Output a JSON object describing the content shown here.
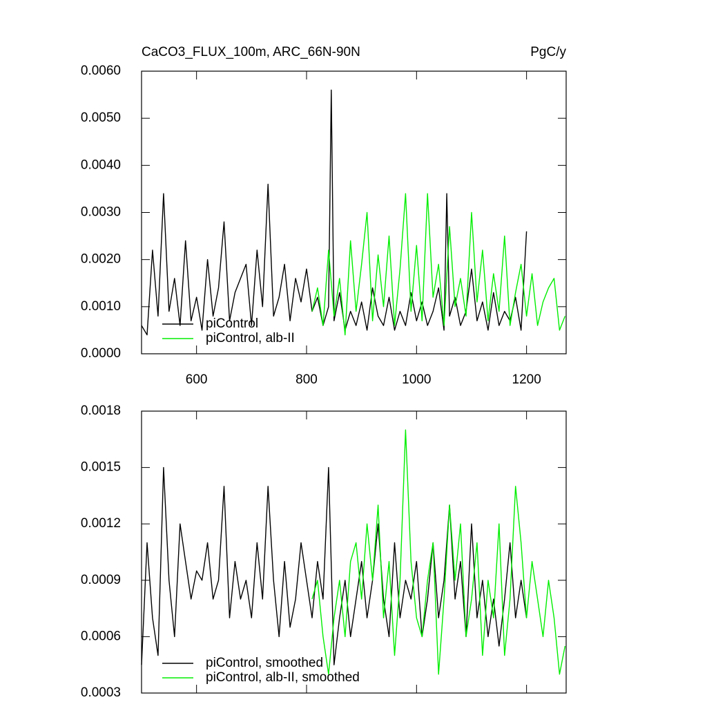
{
  "chart_data": [
    {
      "type": "line",
      "title": "CaCO3_FLUX_100m, ARC_66N-90N",
      "unit_label": "PgC/y",
      "xlim": [
        500,
        1272
      ],
      "xticks": [
        600,
        800,
        1000,
        1200
      ],
      "ylim": [
        0,
        0.006
      ],
      "yticks": [
        {
          "value": 0,
          "label": "0.0000"
        },
        {
          "value": 0.001,
          "label": "0.0010"
        },
        {
          "value": 0.002,
          "label": "0.0020"
        },
        {
          "value": 0.003,
          "label": "0.0030"
        },
        {
          "value": 0.004,
          "label": "0.0040"
        },
        {
          "value": 0.005,
          "label": "0.0050"
        },
        {
          "value": 0.006,
          "label": "0.0060"
        }
      ],
      "legend": "lower left",
      "series": [
        {
          "name": "piControl",
          "color": "#000000",
          "x": [
            500,
            510,
            520,
            530,
            540,
            550,
            560,
            570,
            580,
            590,
            600,
            610,
            620,
            630,
            640,
            650,
            660,
            670,
            680,
            690,
            700,
            710,
            720,
            730,
            740,
            750,
            760,
            770,
            780,
            790,
            800,
            810,
            820,
            830,
            840,
            845,
            850,
            860,
            870,
            880,
            890,
            900,
            910,
            920,
            930,
            940,
            950,
            960,
            970,
            980,
            990,
            1000,
            1010,
            1020,
            1030,
            1040,
            1050,
            1055,
            1060,
            1070,
            1080,
            1090,
            1100,
            1110,
            1120,
            1130,
            1140,
            1150,
            1160,
            1170,
            1180,
            1190,
            1200
          ],
          "values": [
            0.0006,
            0.0004,
            0.0022,
            0.0008,
            0.0034,
            0.0009,
            0.0016,
            0.0006,
            0.0024,
            0.0007,
            0.0012,
            0.0005,
            0.002,
            0.0008,
            0.0014,
            0.0028,
            0.0007,
            0.0013,
            0.0016,
            0.0019,
            0.0006,
            0.0022,
            0.001,
            0.0036,
            0.0008,
            0.0012,
            0.0019,
            0.0007,
            0.0016,
            0.0011,
            0.0018,
            0.0009,
            0.0012,
            0.0006,
            0.001,
            0.0056,
            0.0007,
            0.0013,
            0.0005,
            0.0009,
            0.0006,
            0.0011,
            0.0005,
            0.0014,
            0.0008,
            0.0006,
            0.0012,
            0.0005,
            0.0009,
            0.0006,
            0.0013,
            0.0007,
            0.0011,
            0.0006,
            0.0009,
            0.0014,
            0.0005,
            0.0034,
            0.0008,
            0.0012,
            0.0006,
            0.0009,
            0.0018,
            0.0007,
            0.0011,
            0.0005,
            0.0013,
            0.0006,
            0.0009,
            0.0007,
            0.0012,
            0.0005,
            0.0026
          ]
        },
        {
          "name": "piControl, alb-II",
          "color": "#00ee00",
          "x": [
            810,
            820,
            830,
            840,
            850,
            860,
            870,
            880,
            890,
            900,
            910,
            920,
            930,
            940,
            950,
            960,
            970,
            980,
            990,
            1000,
            1010,
            1020,
            1030,
            1040,
            1050,
            1060,
            1070,
            1080,
            1090,
            1100,
            1110,
            1120,
            1130,
            1140,
            1150,
            1160,
            1170,
            1180,
            1190,
            1200,
            1210,
            1220,
            1230,
            1240,
            1250,
            1260,
            1270
          ],
          "values": [
            0.0009,
            0.0014,
            0.0006,
            0.0022,
            0.0008,
            0.0016,
            0.0004,
            0.0024,
            0.0009,
            0.0019,
            0.003,
            0.0007,
            0.0021,
            0.001,
            0.0025,
            0.0006,
            0.0018,
            0.0034,
            0.0009,
            0.0023,
            0.0007,
            0.0034,
            0.0012,
            0.0019,
            0.0006,
            0.0027,
            0.001,
            0.0016,
            0.0008,
            0.003,
            0.0011,
            0.0022,
            0.0007,
            0.0017,
            0.0009,
            0.0025,
            0.0006,
            0.0013,
            0.0019,
            0.0008,
            0.0017,
            0.0006,
            0.0011,
            0.0014,
            0.0016,
            0.0005,
            0.0008
          ]
        }
      ]
    },
    {
      "type": "line",
      "xlim": [
        500,
        1272
      ],
      "ylim": [
        0.0003,
        0.0018
      ],
      "yticks": [
        0.0003,
        0.0006,
        0.0009,
        0.0012,
        0.0015,
        0.0018
      ],
      "legend": "lower left",
      "series": [
        {
          "name": "piControl, smoothed",
          "color": "#000000",
          "x": [
            500,
            510,
            520,
            530,
            540,
            550,
            560,
            570,
            580,
            590,
            600,
            610,
            620,
            630,
            640,
            650,
            660,
            670,
            680,
            690,
            700,
            710,
            720,
            730,
            740,
            750,
            760,
            770,
            780,
            790,
            800,
            810,
            820,
            830,
            840,
            850,
            860,
            870,
            880,
            890,
            900,
            910,
            920,
            930,
            940,
            950,
            960,
            970,
            980,
            990,
            1000,
            1010,
            1020,
            1030,
            1040,
            1050,
            1060,
            1070,
            1080,
            1090,
            1100,
            1110,
            1120,
            1130,
            1140,
            1150,
            1160,
            1170,
            1180,
            1190,
            1200
          ],
          "values": [
            0.00045,
            0.0011,
            0.0007,
            0.0005,
            0.0015,
            0.0009,
            0.0006,
            0.0012,
            0.001,
            0.0008,
            0.00095,
            0.0009,
            0.0011,
            0.0008,
            0.0009,
            0.0014,
            0.0007,
            0.001,
            0.0008,
            0.0009,
            0.0007,
            0.0011,
            0.0008,
            0.0014,
            0.0009,
            0.0006,
            0.001,
            0.00065,
            0.0008,
            0.0011,
            0.0009,
            0.0007,
            0.001,
            0.0008,
            0.0015,
            0.00045,
            0.0007,
            0.0009,
            0.0006,
            0.0008,
            0.001,
            0.0007,
            0.0009,
            0.0012,
            0.0008,
            0.0006,
            0.0011,
            0.0007,
            0.0009,
            0.0008,
            0.001,
            0.0006,
            0.0008,
            0.0011,
            0.0007,
            0.0009,
            0.0013,
            0.0008,
            0.001,
            0.0006,
            0.0012,
            0.0007,
            0.0009,
            0.0006,
            0.0008,
            0.00055,
            0.0008,
            0.0011,
            0.0007,
            0.0009,
            0.0007
          ]
        },
        {
          "name": "piControl, alb-II, smoothed",
          "color": "#00ee00",
          "x": [
            810,
            820,
            830,
            840,
            850,
            860,
            870,
            880,
            890,
            900,
            910,
            920,
            930,
            940,
            950,
            960,
            970,
            980,
            990,
            1000,
            1010,
            1020,
            1030,
            1040,
            1050,
            1060,
            1070,
            1080,
            1090,
            1100,
            1110,
            1120,
            1130,
            1140,
            1150,
            1160,
            1170,
            1180,
            1190,
            1200,
            1210,
            1220,
            1230,
            1240,
            1250,
            1260,
            1270
          ],
          "values": [
            0.0008,
            0.0009,
            0.0006,
            0.0004,
            0.0007,
            0.0009,
            0.0006,
            0.001,
            0.0011,
            0.0008,
            0.0012,
            0.0009,
            0.0013,
            0.0007,
            0.001,
            0.0005,
            0.0009,
            0.0017,
            0.001,
            0.0007,
            0.0006,
            0.0009,
            0.0011,
            0.0004,
            0.0008,
            0.0013,
            0.0009,
            0.0012,
            0.0006,
            0.0008,
            0.0011,
            0.0005,
            0.0009,
            0.0007,
            0.0012,
            0.0005,
            0.0008,
            0.0014,
            0.0011,
            0.0007,
            0.001,
            0.0008,
            0.0006,
            0.0009,
            0.0007,
            0.0004,
            0.00055
          ]
        }
      ]
    }
  ]
}
